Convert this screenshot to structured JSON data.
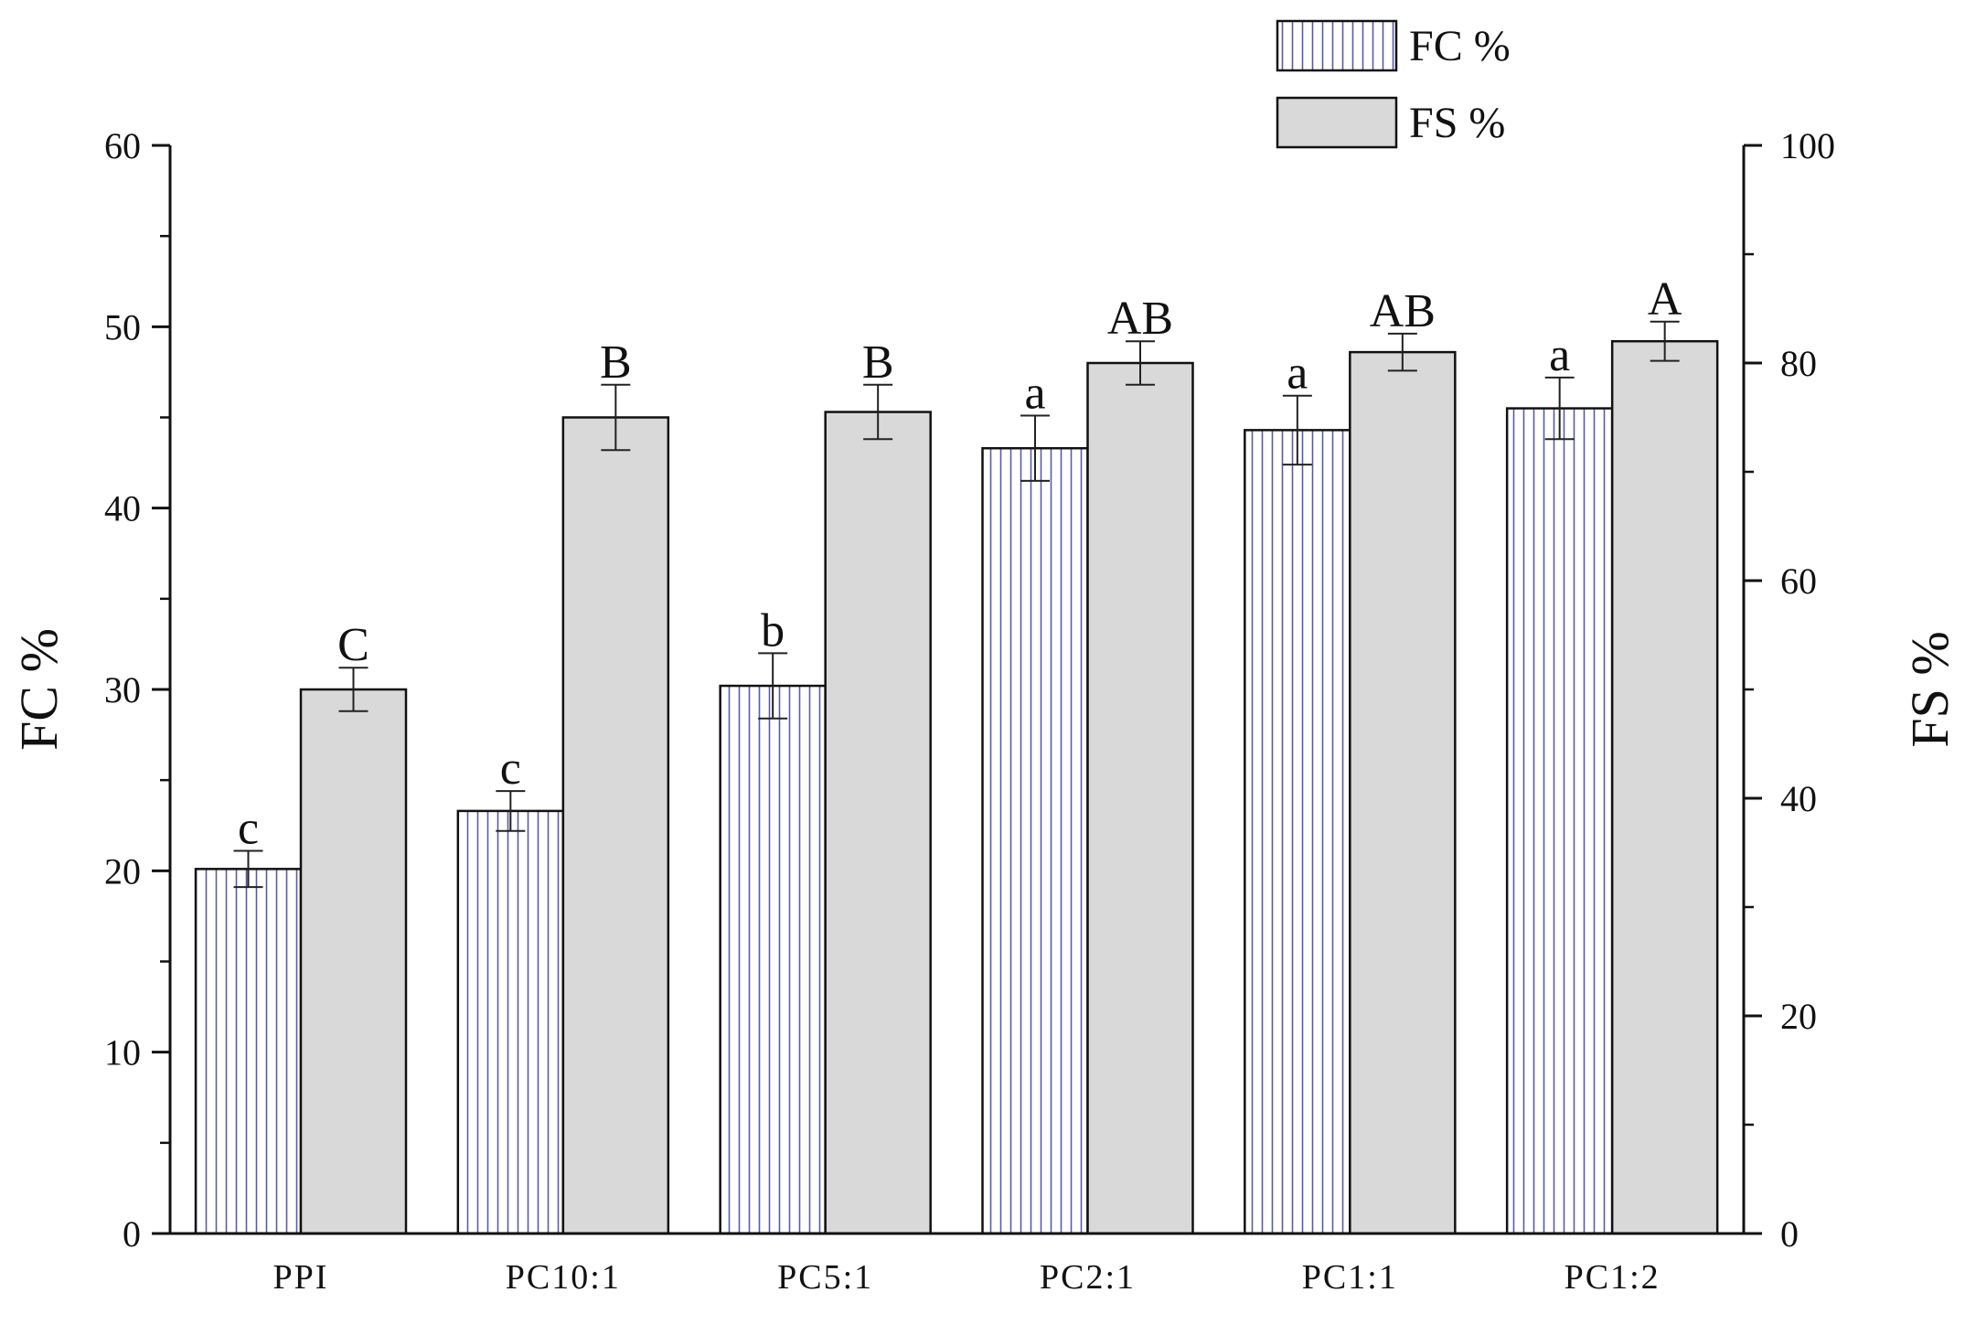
{
  "chart_data": {
    "type": "bar",
    "categories": [
      "PPI",
      "PC10:1",
      "PC5:1",
      "PC2:1",
      "PC1:1",
      "PC1:2"
    ],
    "series": [
      {
        "name": "FC %",
        "axis": "left",
        "pattern": "vertical-stripes",
        "values": [
          20.1,
          23.3,
          30.2,
          43.3,
          44.3,
          45.5
        ],
        "errors": [
          1.0,
          1.1,
          1.8,
          1.8,
          1.9,
          1.7
        ],
        "significance": [
          "c",
          "c",
          "b",
          "a",
          "a",
          "a"
        ]
      },
      {
        "name": "FS %",
        "axis": "right",
        "pattern": "solid",
        "values": [
          50.0,
          75.0,
          75.5,
          80.0,
          81.0,
          82.0
        ],
        "errors": [
          2.0,
          3.0,
          2.5,
          2.0,
          1.7,
          1.8
        ],
        "significance": [
          "C",
          "B",
          "B",
          "AB",
          "AB",
          "A"
        ]
      }
    ],
    "ylabel": "FC %",
    "ylabel_right": "FS %",
    "xlabel": "",
    "ylim": [
      0,
      60
    ],
    "ylim_right": [
      0,
      100
    ],
    "yticks": [
      0,
      10,
      20,
      30,
      40,
      50,
      60
    ],
    "yticks_right": [
      0,
      20,
      40,
      60,
      80,
      100
    ],
    "legend_position": "top-right",
    "colors": {
      "fc_fill": "#ffffff",
      "fc_stripe": "#5a5aa8",
      "fs_fill": "#d9d9d9",
      "outline": "#111111"
    }
  }
}
